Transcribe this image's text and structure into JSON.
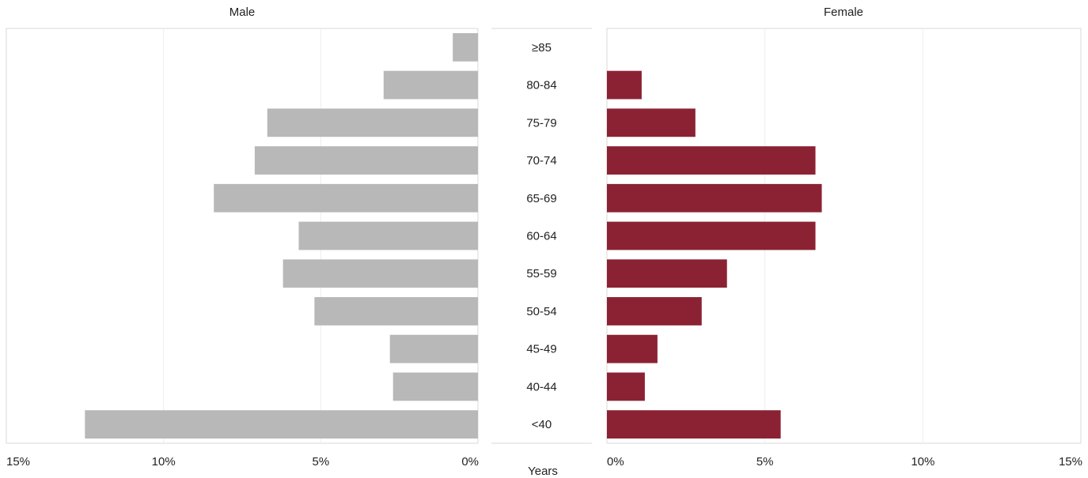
{
  "chart_data": {
    "type": "bar",
    "orientation": "horizontal",
    "layout": "population-pyramid",
    "categories": [
      "≥85",
      "80-84",
      "75-79",
      "70-74",
      "65-69",
      "60-64",
      "55-59",
      "50-54",
      "45-49",
      "40-44",
      "<40"
    ],
    "category_axis_label": "Years",
    "xlim": [
      0,
      15
    ],
    "x_ticks": [
      0,
      5,
      10,
      15
    ],
    "x_tick_suffix": "%",
    "grid": true,
    "legend": "none",
    "series": [
      {
        "name": "Male",
        "panel": "left",
        "color": "#b8b8b8",
        "values": [
          0.8,
          3.0,
          6.7,
          7.1,
          8.4,
          5.7,
          6.2,
          5.2,
          2.8,
          2.7,
          12.5
        ]
      },
      {
        "name": "Female",
        "panel": "right",
        "color": "#8b2233",
        "values": [
          0,
          1.1,
          2.8,
          6.6,
          6.8,
          6.6,
          3.8,
          3.0,
          1.6,
          1.2,
          5.5
        ]
      }
    ]
  }
}
